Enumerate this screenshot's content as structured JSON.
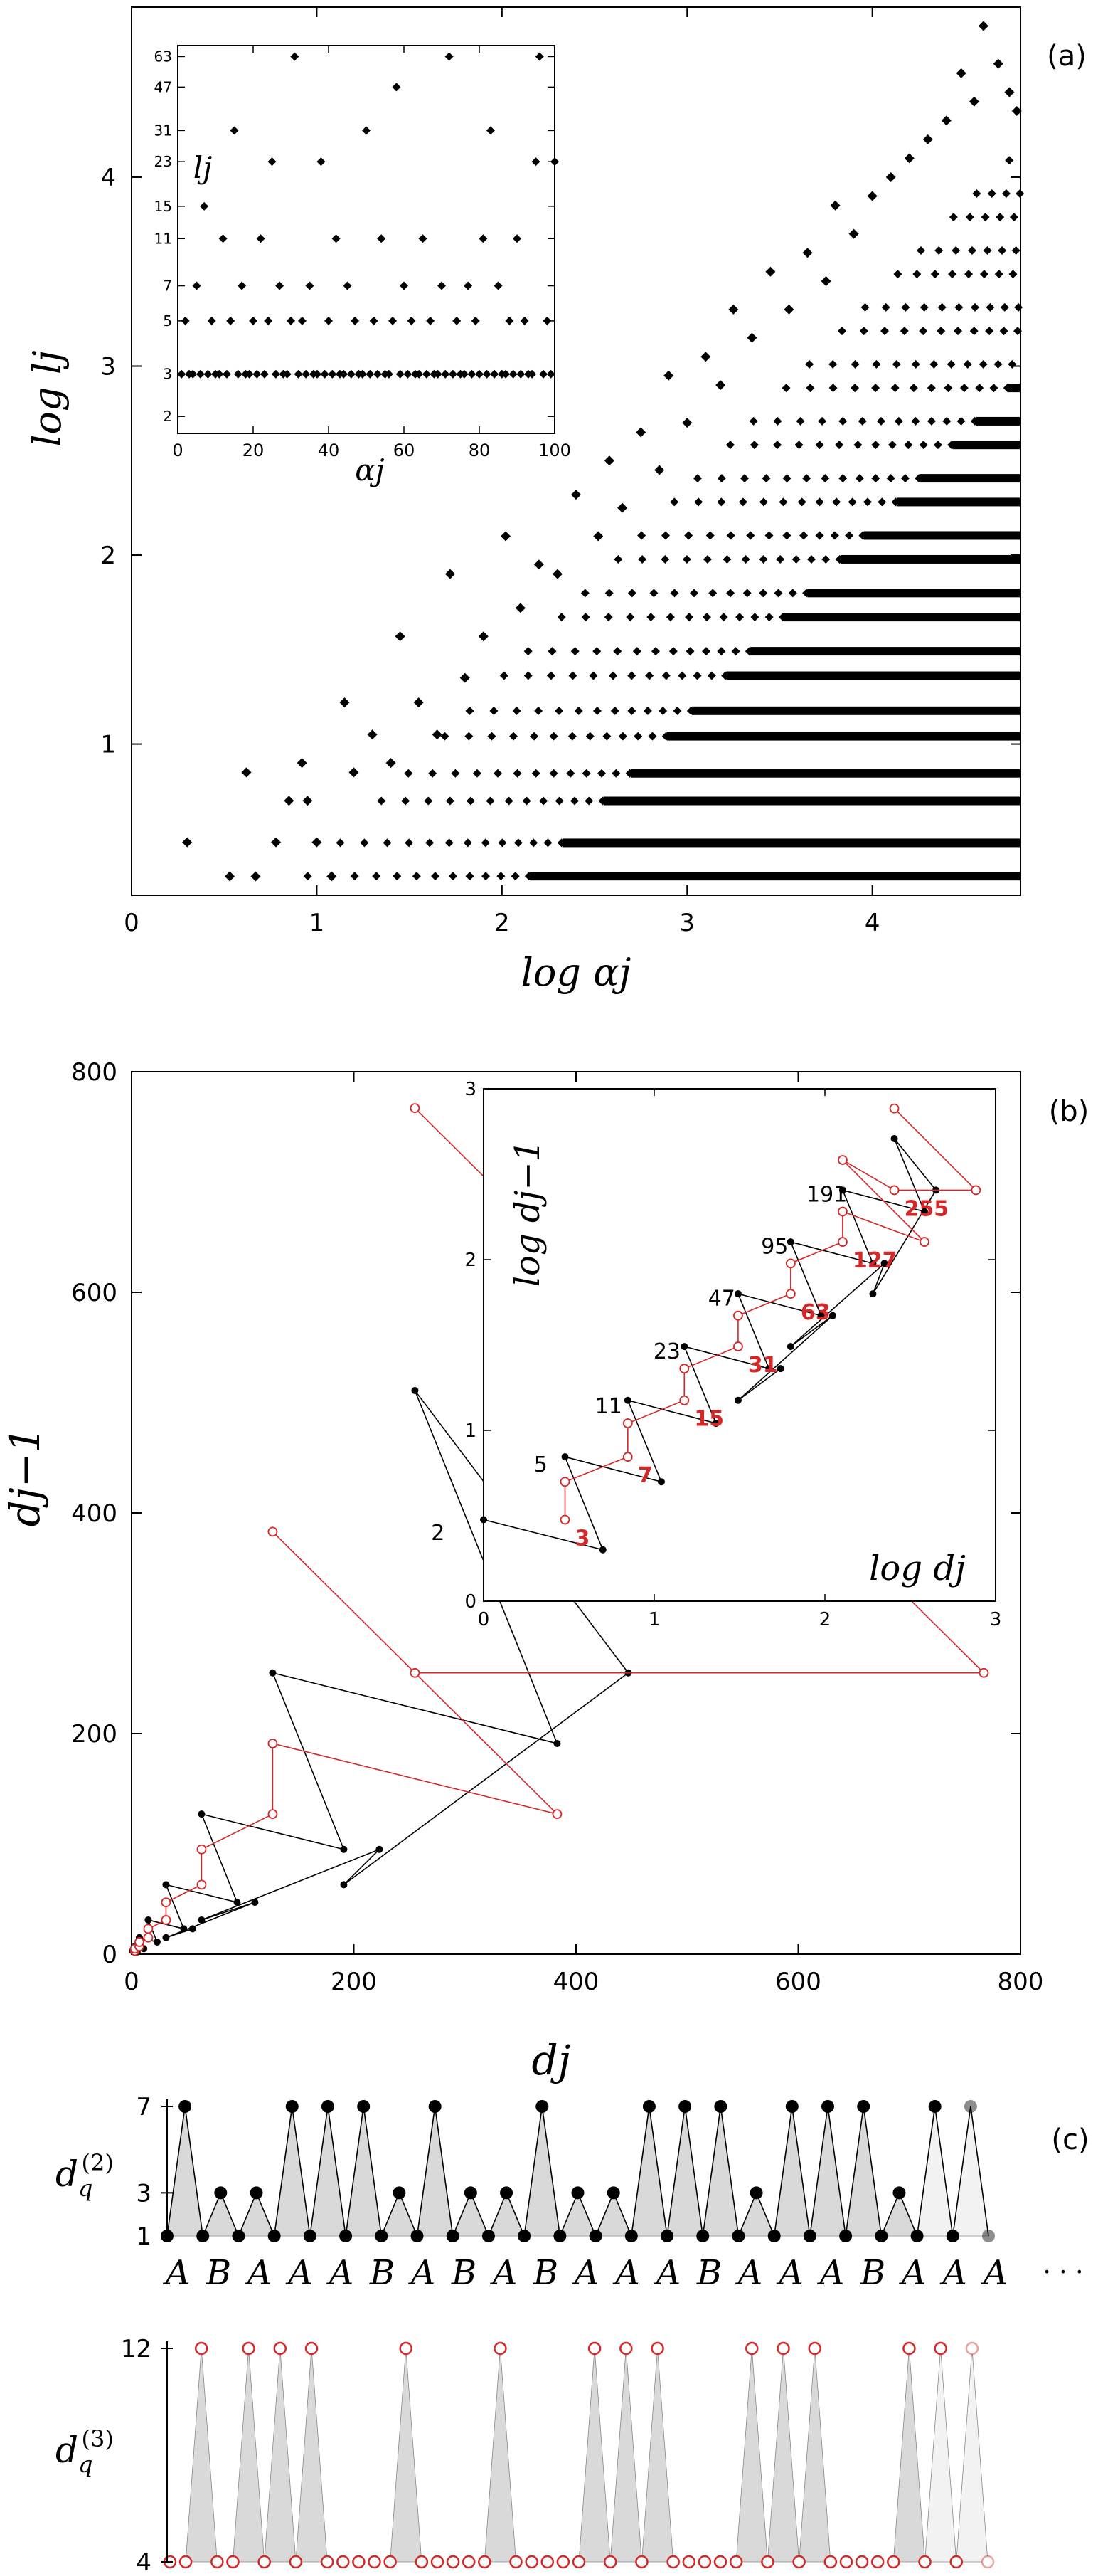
{
  "chart_data": [
    {
      "panel": "(a)",
      "type": "scatter",
      "xlabel": "log αj",
      "ylabel": "log lj",
      "x_ticks": [
        "0",
        "1",
        "2",
        "3",
        "4"
      ],
      "y_ticks": [
        "1",
        "2",
        "3",
        "4"
      ],
      "xlim": [
        0,
        4.8
      ],
      "ylim": [
        0.2,
        4.9
      ],
      "marker": "diamond",
      "marker_color": "#000000",
      "points_note": "dense triangular distribution bounded above by log l ≈ log α",
      "upper_points": [
        [
          0.3,
          0.48
        ],
        [
          0.53,
          0.3
        ],
        [
          0.62,
          0.85
        ],
        [
          0.67,
          0.3
        ],
        [
          0.78,
          0.48
        ],
        [
          0.85,
          0.7
        ],
        [
          0.92,
          0.9
        ],
        [
          0.95,
          0.7
        ],
        [
          1.0,
          0.48
        ],
        [
          1.08,
          0.3
        ],
        [
          1.15,
          1.22
        ],
        [
          1.2,
          0.85
        ],
        [
          1.3,
          1.05
        ],
        [
          1.4,
          0.9
        ],
        [
          1.45,
          1.57
        ],
        [
          1.55,
          1.22
        ],
        [
          1.65,
          1.05
        ],
        [
          1.72,
          1.9
        ],
        [
          1.8,
          1.35
        ],
        [
          1.9,
          1.57
        ],
        [
          2.02,
          2.1
        ],
        [
          2.1,
          1.72
        ],
        [
          2.2,
          1.95
        ],
        [
          2.3,
          1.9
        ],
        [
          2.4,
          2.32
        ],
        [
          2.52,
          2.1
        ],
        [
          2.58,
          2.5
        ],
        [
          2.65,
          2.25
        ],
        [
          2.75,
          2.65
        ],
        [
          2.85,
          2.45
        ],
        [
          2.9,
          2.95
        ],
        [
          3.0,
          2.7
        ],
        [
          3.1,
          3.05
        ],
        [
          3.18,
          2.9
        ],
        [
          3.25,
          3.3
        ],
        [
          3.35,
          3.15
        ],
        [
          3.45,
          3.5
        ],
        [
          3.55,
          3.3
        ],
        [
          3.65,
          3.6
        ],
        [
          3.75,
          3.45
        ],
        [
          3.8,
          3.85
        ],
        [
          3.9,
          3.7
        ],
        [
          4.0,
          3.9
        ],
        [
          4.1,
          4.0
        ],
        [
          4.2,
          4.1
        ],
        [
          4.3,
          4.2
        ],
        [
          4.4,
          4.3
        ],
        [
          4.48,
          4.55
        ],
        [
          4.55,
          4.4
        ],
        [
          4.6,
          4.8
        ],
        [
          4.68,
          4.6
        ],
        [
          4.74,
          4.45
        ],
        [
          4.78,
          4.35
        ]
      ],
      "inset": {
        "type": "scatter",
        "xlabel": "αj",
        "ylabel": "lj",
        "x_ticks": [
          "0",
          "20",
          "40",
          "60",
          "80",
          "100"
        ],
        "y_ticks": [
          "2",
          "3",
          "5",
          "7",
          "11",
          "15",
          "23",
          "31",
          "47",
          "63"
        ],
        "xlim": [
          0,
          100
        ],
        "ylim": [
          0,
          67
        ],
        "points": [
          [
            1,
            3
          ],
          [
            2,
            5
          ],
          [
            3,
            3
          ],
          [
            4,
            3
          ],
          [
            5,
            7
          ],
          [
            6,
            3
          ],
          [
            7,
            15
          ],
          [
            8,
            3
          ],
          [
            9,
            5
          ],
          [
            10,
            3
          ],
          [
            11,
            3
          ],
          [
            12,
            11
          ],
          [
            13,
            3
          ],
          [
            14,
            5
          ],
          [
            15,
            31
          ],
          [
            16,
            3
          ],
          [
            17,
            7
          ],
          [
            18,
            3
          ],
          [
            19,
            3
          ],
          [
            20,
            5
          ],
          [
            21,
            3
          ],
          [
            22,
            11
          ],
          [
            23,
            3
          ],
          [
            24,
            5
          ],
          [
            25,
            23
          ],
          [
            26,
            3
          ],
          [
            27,
            7
          ],
          [
            28,
            3
          ],
          [
            29,
            3
          ],
          [
            30,
            5
          ],
          [
            31,
            63
          ],
          [
            32,
            3
          ],
          [
            33,
            5
          ],
          [
            34,
            3
          ],
          [
            35,
            7
          ],
          [
            36,
            3
          ],
          [
            37,
            3
          ],
          [
            38,
            23
          ],
          [
            39,
            3
          ],
          [
            40,
            5
          ],
          [
            41,
            3
          ],
          [
            42,
            11
          ],
          [
            43,
            3
          ],
          [
            44,
            3
          ],
          [
            45,
            7
          ],
          [
            46,
            3
          ],
          [
            47,
            5
          ],
          [
            48,
            3
          ],
          [
            49,
            3
          ],
          [
            50,
            31
          ],
          [
            51,
            3
          ],
          [
            52,
            5
          ],
          [
            53,
            3
          ],
          [
            54,
            11
          ],
          [
            55,
            3
          ],
          [
            56,
            3
          ],
          [
            57,
            5
          ],
          [
            58,
            47
          ],
          [
            59,
            3
          ],
          [
            60,
            7
          ],
          [
            61,
            3
          ],
          [
            62,
            5
          ],
          [
            63,
            3
          ],
          [
            64,
            3
          ],
          [
            65,
            11
          ],
          [
            66,
            3
          ],
          [
            67,
            5
          ],
          [
            68,
            3
          ],
          [
            69,
            3
          ],
          [
            70,
            7
          ],
          [
            71,
            3
          ],
          [
            72,
            63
          ],
          [
            73,
            3
          ],
          [
            74,
            5
          ],
          [
            75,
            3
          ],
          [
            76,
            3
          ],
          [
            77,
            7
          ],
          [
            78,
            3
          ],
          [
            79,
            5
          ],
          [
            80,
            3
          ],
          [
            81,
            11
          ],
          [
            82,
            3
          ],
          [
            83,
            31
          ],
          [
            84,
            3
          ],
          [
            85,
            7
          ],
          [
            86,
            3
          ],
          [
            87,
            3
          ],
          [
            88,
            5
          ],
          [
            89,
            3
          ],
          [
            90,
            11
          ],
          [
            91,
            3
          ],
          [
            92,
            5
          ],
          [
            93,
            3
          ],
          [
            94,
            3
          ],
          [
            95,
            23
          ],
          [
            96,
            63
          ],
          [
            97,
            3
          ],
          [
            98,
            5
          ],
          [
            99,
            3
          ],
          [
            100,
            23
          ]
        ]
      }
    },
    {
      "panel": "(b)",
      "type": "line",
      "xlabel": "dj",
      "ylabel": "dj−1",
      "x_ticks": [
        "0",
        "200",
        "400",
        "600",
        "800"
      ],
      "y_ticks": [
        "0",
        "200",
        "400",
        "600",
        "800"
      ],
      "xlim": [
        0,
        800
      ],
      "ylim": [
        0,
        800
      ],
      "series": [
        {
          "color": "#000000",
          "marker": "filled-circle",
          "points": [
            [
              1,
              3
            ],
            [
              5,
              2
            ],
            [
              3,
              7
            ],
            [
              11,
              5
            ],
            [
              7,
              15
            ],
            [
              23,
              11
            ],
            [
              15,
              31
            ],
            [
              47,
              23
            ],
            [
              31,
              63
            ],
            [
              95,
              47
            ],
            [
              63,
              127
            ],
            [
              191,
              95
            ],
            [
              127,
              255
            ],
            [
              383,
              191
            ],
            [
              255,
              511
            ],
            [
              447,
              255
            ],
            [
              191,
              63
            ],
            [
              223,
              95
            ],
            [
              63,
              31
            ],
            [
              111,
              47
            ],
            [
              31,
              15
            ],
            [
              55,
              23
            ]
          ]
        },
        {
          "color": "#d62728",
          "marker": "open-circle",
          "points": [
            [
              3,
              3
            ],
            [
              3,
              5
            ],
            [
              7,
              7
            ],
            [
              7,
              11
            ],
            [
              15,
              15
            ],
            [
              15,
              23
            ],
            [
              31,
              31
            ],
            [
              31,
              47
            ],
            [
              63,
              63
            ],
            [
              63,
              95
            ],
            [
              127,
              127
            ],
            [
              127,
              191
            ],
            [
              383,
              127
            ],
            [
              127,
              383
            ],
            [
              255,
              255
            ],
            [
              767,
              255
            ],
            [
              255,
              767
            ]
          ]
        }
      ],
      "inset": {
        "xlabel": "log dj",
        "ylabel": "log dj−1",
        "x_ticks": [
          "0",
          "1",
          "2",
          "3"
        ],
        "y_ticks": [
          "0",
          "1",
          "2",
          "3"
        ],
        "xlim": [
          0,
          3
        ],
        "ylim": [
          0,
          3
        ],
        "black_labels": [
          "2",
          "5",
          "11",
          "23",
          "47",
          "95",
          "191"
        ],
        "red_labels": [
          "3",
          "7",
          "15",
          "31",
          "63",
          "127",
          "255"
        ],
        "black_label_values": [
          2,
          5,
          11,
          23,
          47,
          95,
          191
        ],
        "red_label_values": [
          3,
          7,
          15,
          31,
          63,
          127,
          255
        ]
      }
    },
    {
      "panel": "(c)",
      "type": "line",
      "rows": [
        {
          "ylabel": "dq(2)",
          "y_ticks": [
            "1",
            "3",
            "7"
          ],
          "color": "#000000",
          "marker": "filled-circle",
          "values": [
            1,
            7,
            1,
            3,
            1,
            3,
            1,
            7,
            1,
            7,
            1,
            7,
            1,
            3,
            1,
            7,
            1,
            3,
            1,
            3,
            1,
            7,
            1,
            3,
            1,
            3,
            1,
            7,
            1,
            7,
            1,
            7,
            1,
            3,
            1,
            7,
            1,
            7,
            1,
            7,
            1,
            3,
            1,
            7,
            1,
            7,
            1
          ]
        },
        {
          "ylabel": "dq(3)",
          "y_ticks": [
            "4",
            "12"
          ],
          "color": "#d62728",
          "marker": "open-circle",
          "values": [
            4,
            4,
            12,
            4,
            4,
            12,
            4,
            12,
            4,
            12,
            4,
            4,
            4,
            4,
            4,
            12,
            4,
            4,
            4,
            4,
            4,
            12,
            4,
            4,
            4,
            4,
            4,
            12,
            4,
            12,
            4,
            12,
            4,
            4,
            4,
            4,
            4,
            12,
            4,
            12,
            4,
            12,
            4,
            4,
            4,
            4,
            4,
            12,
            4,
            12,
            4,
            12,
            4
          ]
        }
      ],
      "sequence": [
        "A",
        "B",
        "A",
        "A",
        "A",
        "B",
        "A",
        "B",
        "A",
        "B",
        "A",
        "A",
        "A",
        "B",
        "A",
        "A",
        "A",
        "B",
        "A",
        "A",
        "A"
      ],
      "ellipsis": "· · ·"
    }
  ],
  "panel_labels": {
    "a": "(a)",
    "b": "(b)",
    "c": "(c)"
  }
}
